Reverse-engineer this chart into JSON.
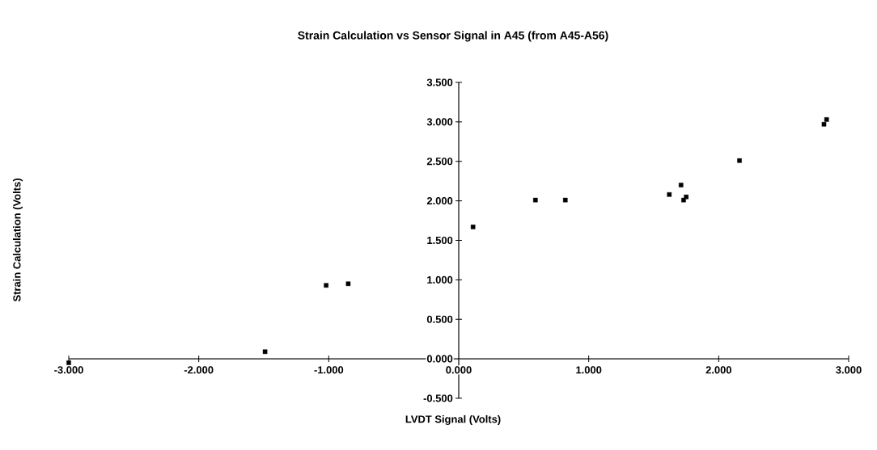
{
  "chart_data": {
    "type": "scatter",
    "title": "Strain Calculation vs Sensor Signal in A45 (from A45-A56)",
    "xlabel": "LVDT Signal (Volts)",
    "ylabel": "Strain Calculation (Volts)",
    "x": [
      -3.0,
      -1.49,
      -1.02,
      -0.85,
      0.11,
      0.59,
      0.82,
      1.62,
      1.71,
      1.73,
      1.75,
      2.16,
      2.81,
      2.83
    ],
    "values": [
      -0.05,
      0.09,
      0.93,
      0.95,
      1.67,
      2.01,
      2.01,
      2.08,
      2.2,
      2.01,
      2.05,
      2.51,
      2.97,
      3.03
    ],
    "color": "#000000",
    "marker": "square",
    "xlim": [
      -3,
      3
    ],
    "ylim": [
      -0.5,
      3.5
    ],
    "xticks": [
      {
        "value": -3,
        "label": "-3.000"
      },
      {
        "value": -2,
        "label": "-2.000"
      },
      {
        "value": -1,
        "label": "-1.000"
      },
      {
        "value": 0,
        "label": "0.000"
      },
      {
        "value": 1,
        "label": "1.000"
      },
      {
        "value": 2,
        "label": "2.000"
      },
      {
        "value": 3,
        "label": "3.000"
      }
    ],
    "yticks": [
      {
        "value": -0.5,
        "label": "-0.500"
      },
      {
        "value": 0,
        "label": "0.000"
      },
      {
        "value": 0.5,
        "label": "0.500"
      },
      {
        "value": 1,
        "label": "1.000"
      },
      {
        "value": 1.5,
        "label": "1.500"
      },
      {
        "value": 2,
        "label": "2.000"
      },
      {
        "value": 2.5,
        "label": "2.500"
      },
      {
        "value": 3,
        "label": "3.000"
      },
      {
        "value": 3.5,
        "label": "3.500"
      }
    ]
  }
}
